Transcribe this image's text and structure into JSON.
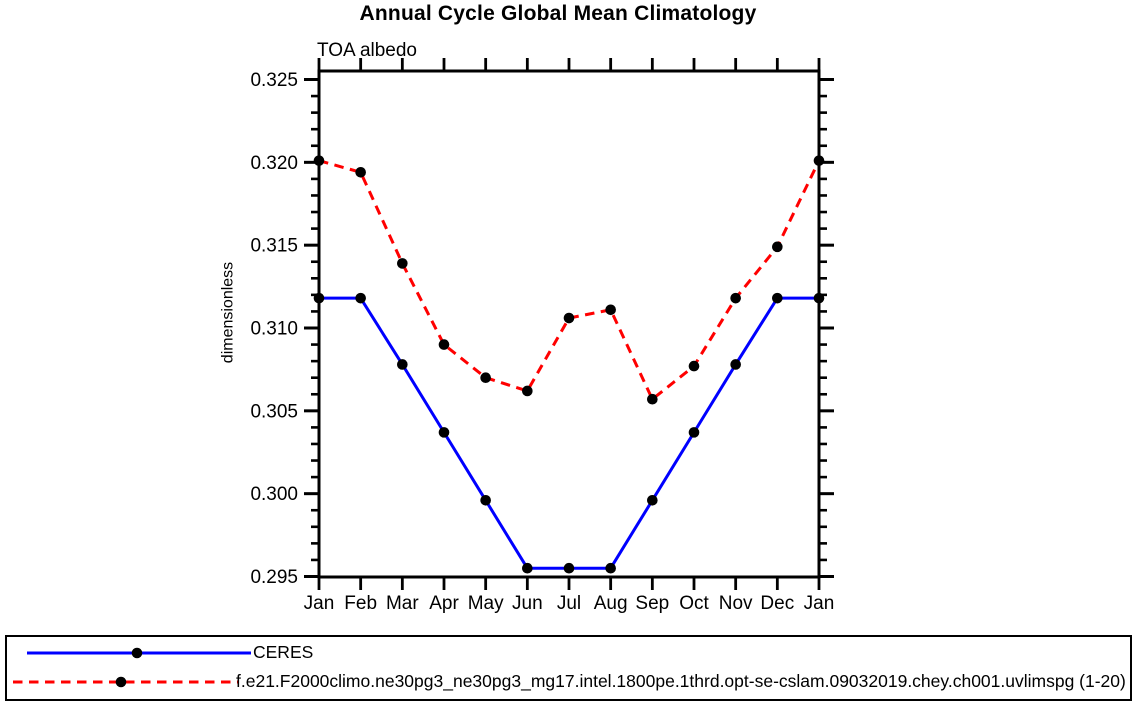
{
  "chart_data": {
    "type": "line",
    "title": "Annual Cycle Global Mean Climatology",
    "subtitle": "TOA albedo",
    "xlabel": "",
    "ylabel": "dimensionless",
    "categories": [
      "Jan",
      "Feb",
      "Mar",
      "Apr",
      "May",
      "Jun",
      "Jul",
      "Aug",
      "Sep",
      "Oct",
      "Nov",
      "Dec",
      "Jan"
    ],
    "y_ticks": [
      0.295,
      0.3,
      0.305,
      0.31,
      0.315,
      0.32,
      0.325
    ],
    "y_tick_labels": [
      "0.295",
      "0.300",
      "0.305",
      "0.310",
      "0.315",
      "0.320",
      "0.325"
    ],
    "y_minor_tick_step": 0.001,
    "ylim": [
      0.295,
      0.3254
    ],
    "grid": false,
    "legend_position": "bottom-left-box",
    "series": [
      {
        "name": "CERES",
        "color": "#0000ff",
        "style": "solid",
        "marker": "filled-circle",
        "marker_color": "#000000",
        "values": [
          0.3118,
          0.3118,
          0.3078,
          0.3037,
          0.2996,
          0.2955,
          0.2955,
          0.2955,
          0.2996,
          0.3037,
          0.3078,
          0.3118,
          0.3118
        ]
      },
      {
        "name": "f.e21.F2000climo.ne30pg3_ne30pg3_mg17.intel.1800pe.1thrd.opt-se-cslam.09032019.chey.ch001.uvlimspg (1-20)",
        "color": "#ff0000",
        "style": "dashed",
        "marker": "filled-circle",
        "marker_color": "#000000",
        "values": [
          0.3201,
          0.3194,
          0.3139,
          0.309,
          0.307,
          0.3062,
          0.3106,
          0.3111,
          0.3057,
          0.3077,
          0.3118,
          0.3149,
          0.3201
        ]
      }
    ],
    "colors": {
      "axis": "#000000",
      "background": "#ffffff"
    }
  }
}
